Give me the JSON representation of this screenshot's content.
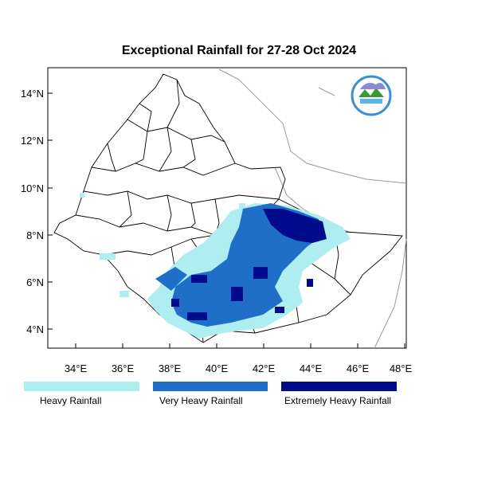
{
  "map": {
    "title": "Exceptional Rainfall for 27-28 Oct 2024",
    "latitude_labels": [
      "14°N",
      "12°N",
      "10°N",
      "8°N",
      "6°N",
      "4°N"
    ],
    "longitude_labels": [
      "34°E",
      "36°E",
      "38°E",
      "40°E",
      "42°E",
      "44°E",
      "46°E",
      "48°E"
    ],
    "colors": {
      "heavy": "#aeeef0",
      "very_heavy": "#1f6fc8",
      "extremely_heavy": "#000c8c",
      "boundary": "#000000",
      "coastline": "#9a9a9a"
    },
    "legend": [
      {
        "label": "Heavy Rainfall",
        "color": "#aeeef0"
      },
      {
        "label": "Very Heavy Rainfall",
        "color": "#1f6fc8"
      },
      {
        "label": "Extremely Heavy Rainfall",
        "color": "#000c8c"
      }
    ],
    "logo": {
      "icon": "meteorology-agency-logo-icon"
    }
  }
}
